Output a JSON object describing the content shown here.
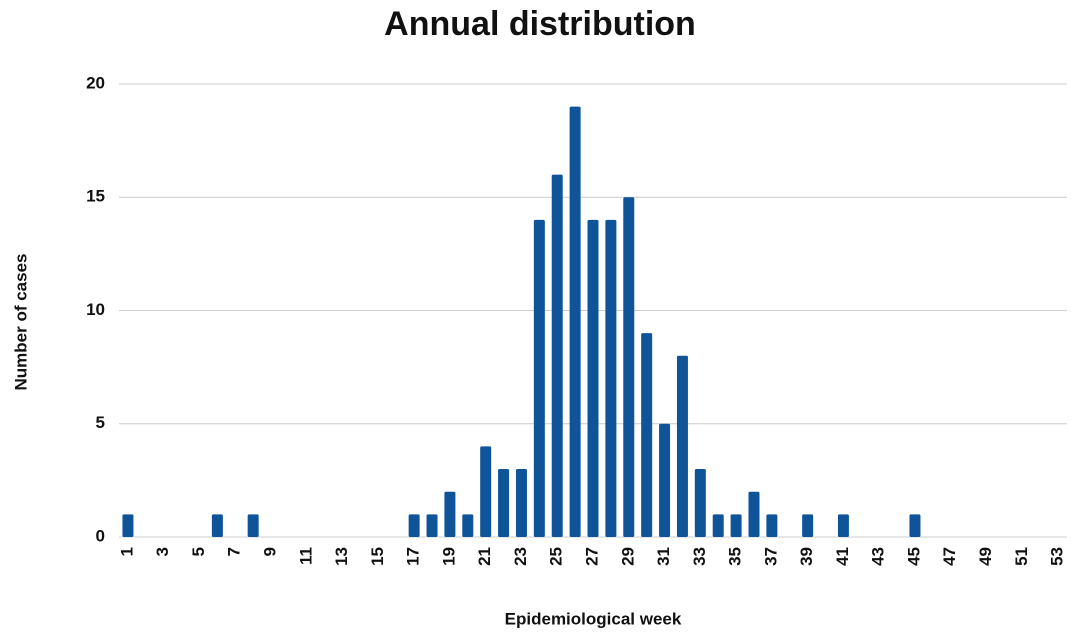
{
  "chart_data": {
    "type": "bar",
    "title": "Annual distribution",
    "x_label": "Epidemiological week",
    "y_label": "Number of cases",
    "categories": [
      "1",
      null,
      "3",
      null,
      "5",
      null,
      "7",
      null,
      "9",
      null,
      "11",
      null,
      "13",
      null,
      "15",
      null,
      "17",
      null,
      "19",
      null,
      "21",
      null,
      "23",
      null,
      "25",
      null,
      "27",
      null,
      "29",
      null,
      "31",
      null,
      "33",
      null,
      "35",
      null,
      "37",
      null,
      "39",
      null,
      "41",
      null,
      "43",
      null,
      "45",
      null,
      "47",
      null,
      "49",
      null,
      "51",
      null,
      "53"
    ],
    "values": [
      1,
      0,
      0,
      0,
      0,
      1,
      0,
      1,
      0,
      0,
      0,
      0,
      0,
      0,
      0,
      0,
      1,
      1,
      2,
      1,
      4,
      3,
      3,
      14,
      16,
      19,
      14,
      14,
      15,
      9,
      5,
      8,
      3,
      1,
      1,
      2,
      1,
      0,
      1,
      0,
      1,
      0,
      0,
      0,
      1,
      0,
      0,
      0,
      0,
      0,
      0,
      0,
      0
    ],
    "color": "#0f5499",
    "ylim": [
      0,
      20
    ],
    "yticks": [
      0,
      5,
      10,
      15,
      20
    ],
    "grid": true
  }
}
